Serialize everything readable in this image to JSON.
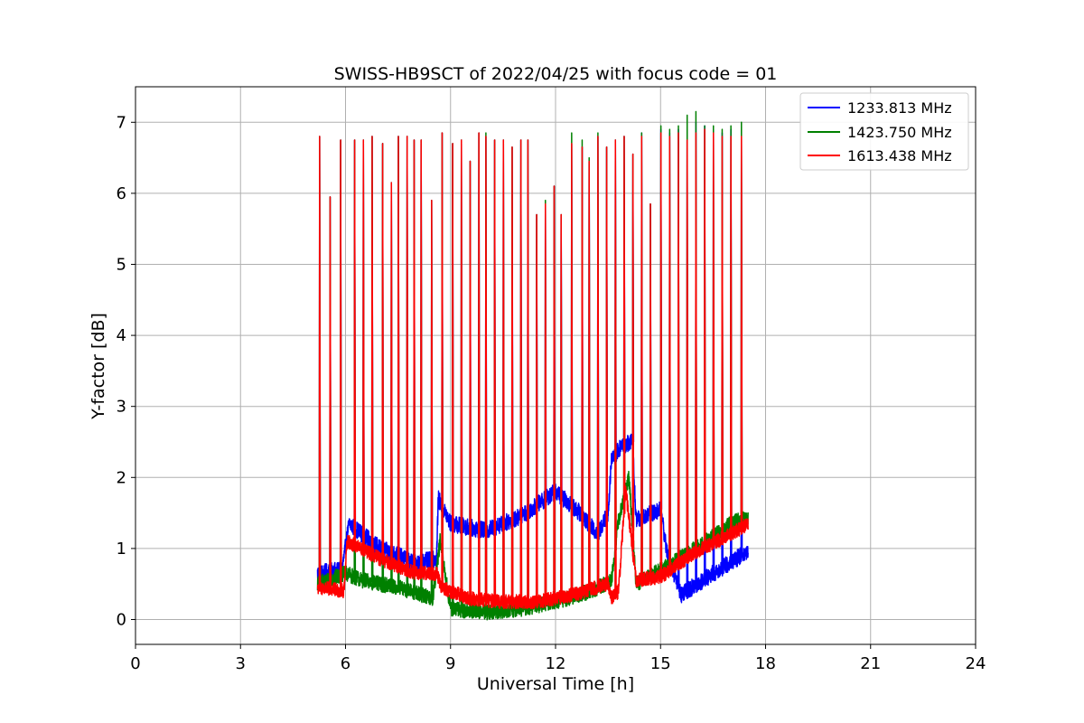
{
  "chart_data": {
    "type": "line",
    "title": "SWISS-HB9SCT of 2022/04/25 with focus code = 01",
    "xlabel": "Universal Time [h]",
    "ylabel": "Y-factor [dB]",
    "xlim": [
      0,
      24
    ],
    "ylim": [
      -0.35,
      7.5
    ],
    "xticks": [
      0,
      3,
      6,
      9,
      12,
      15,
      18,
      21,
      24
    ],
    "yticks": [
      0,
      1,
      2,
      3,
      4,
      5,
      6,
      7
    ],
    "grid": true,
    "legend_position": "top-right",
    "spike_times": [
      5.25,
      5.55,
      5.85,
      6.25,
      6.5,
      6.75,
      7.05,
      7.3,
      7.5,
      7.75,
      7.95,
      8.15,
      8.45,
      8.75,
      9.05,
      9.3,
      9.55,
      9.8,
      10.0,
      10.25,
      10.5,
      10.75,
      11.0,
      11.2,
      11.45,
      11.7,
      11.95,
      12.15,
      12.45,
      12.75,
      12.95,
      13.2,
      13.45,
      13.7,
      13.95,
      14.2,
      14.45,
      14.7,
      15.0,
      15.25,
      15.5,
      15.75,
      16.0,
      16.25,
      16.5,
      16.75,
      17.0,
      17.3
    ],
    "series": [
      {
        "name": "1233.813 MHz",
        "color": "#0000ff",
        "baseline": [
          [
            5.2,
            0.65
          ],
          [
            5.9,
            0.7
          ],
          [
            6.1,
            1.35
          ],
          [
            7.0,
            1.0
          ],
          [
            8.0,
            0.8
          ],
          [
            8.6,
            0.85
          ],
          [
            8.65,
            1.7
          ],
          [
            9.0,
            1.35
          ],
          [
            10.0,
            1.25
          ],
          [
            11.0,
            1.45
          ],
          [
            12.0,
            1.8
          ],
          [
            12.7,
            1.5
          ],
          [
            13.2,
            1.2
          ],
          [
            13.5,
            1.5
          ],
          [
            13.6,
            2.25
          ],
          [
            13.9,
            2.45
          ],
          [
            14.2,
            2.5
          ],
          [
            14.3,
            1.4
          ],
          [
            15.0,
            1.55
          ],
          [
            15.2,
            0.9
          ],
          [
            15.6,
            0.35
          ],
          [
            16.5,
            0.65
          ],
          [
            17.3,
            0.9
          ],
          [
            17.5,
            0.95
          ]
        ],
        "noise": 0.12,
        "spike_peaks": [
          6.8,
          5.95,
          6.75,
          6.75,
          6.75,
          6.8,
          6.7,
          6.15,
          6.8,
          6.8,
          6.75,
          6.75,
          5.9,
          6.85,
          6.7,
          6.75,
          6.45,
          6.85,
          6.8,
          6.75,
          6.75,
          6.65,
          6.75,
          6.75,
          5.7,
          5.85,
          6.1,
          5.7,
          6.7,
          6.65,
          6.45,
          6.8,
          6.65,
          6.75,
          6.8,
          6.55,
          6.85,
          5.85,
          6.9,
          6.85,
          6.9,
          6.75,
          7.0,
          6.95,
          6.9,
          6.85,
          6.9,
          6.8
        ]
      },
      {
        "name": "1423.750 MHz",
        "color": "#008000",
        "baseline": [
          [
            5.2,
            0.5
          ],
          [
            6.0,
            0.65
          ],
          [
            6.5,
            0.55
          ],
          [
            7.5,
            0.45
          ],
          [
            8.5,
            0.3
          ],
          [
            8.7,
            1.1
          ],
          [
            9.0,
            0.15
          ],
          [
            10.0,
            0.1
          ],
          [
            11.0,
            0.15
          ],
          [
            12.0,
            0.25
          ],
          [
            13.0,
            0.4
          ],
          [
            13.6,
            0.55
          ],
          [
            13.8,
            1.4
          ],
          [
            14.1,
            2.0
          ],
          [
            14.3,
            0.5
          ],
          [
            15.0,
            0.7
          ],
          [
            16.0,
            1.0
          ],
          [
            17.0,
            1.35
          ],
          [
            17.5,
            1.45
          ]
        ],
        "noise": 0.11,
        "spike_peaks": [
          6.8,
          5.95,
          6.75,
          6.75,
          6.75,
          6.8,
          6.7,
          6.15,
          6.8,
          6.8,
          6.75,
          6.75,
          5.9,
          6.85,
          6.7,
          6.75,
          6.45,
          6.85,
          6.85,
          6.75,
          6.75,
          6.65,
          6.75,
          6.75,
          5.7,
          5.9,
          6.1,
          5.7,
          6.85,
          6.75,
          6.5,
          6.85,
          6.65,
          6.75,
          6.8,
          6.55,
          6.85,
          5.85,
          6.95,
          6.9,
          6.95,
          7.1,
          7.15,
          6.95,
          6.95,
          6.9,
          6.95,
          7.0
        ]
      },
      {
        "name": "1613.438 MHz",
        "color": "#ff0000",
        "baseline": [
          [
            5.2,
            0.45
          ],
          [
            5.95,
            0.4
          ],
          [
            6.05,
            1.1
          ],
          [
            7.0,
            0.85
          ],
          [
            8.0,
            0.65
          ],
          [
            8.6,
            0.65
          ],
          [
            8.75,
            0.45
          ],
          [
            9.5,
            0.3
          ],
          [
            10.5,
            0.25
          ],
          [
            11.5,
            0.25
          ],
          [
            12.5,
            0.35
          ],
          [
            13.5,
            0.5
          ],
          [
            13.6,
            0.3
          ],
          [
            13.8,
            0.4
          ],
          [
            14.0,
            1.85
          ],
          [
            14.3,
            0.55
          ],
          [
            15.0,
            0.6
          ],
          [
            16.0,
            0.95
          ],
          [
            17.0,
            1.2
          ],
          [
            17.5,
            1.35
          ]
        ],
        "noise": 0.1,
        "spike_peaks": [
          6.8,
          5.95,
          6.75,
          6.75,
          6.75,
          6.8,
          6.7,
          6.15,
          6.8,
          6.8,
          6.75,
          6.75,
          5.9,
          6.85,
          6.7,
          6.75,
          6.45,
          6.85,
          6.8,
          6.75,
          6.75,
          6.65,
          6.75,
          6.75,
          5.7,
          5.85,
          6.1,
          5.7,
          6.7,
          6.65,
          6.45,
          6.8,
          6.65,
          6.75,
          6.8,
          6.55,
          6.8,
          5.85,
          6.85,
          6.8,
          6.85,
          6.75,
          6.85,
          6.9,
          6.85,
          6.8,
          6.8,
          6.8
        ]
      }
    ]
  }
}
